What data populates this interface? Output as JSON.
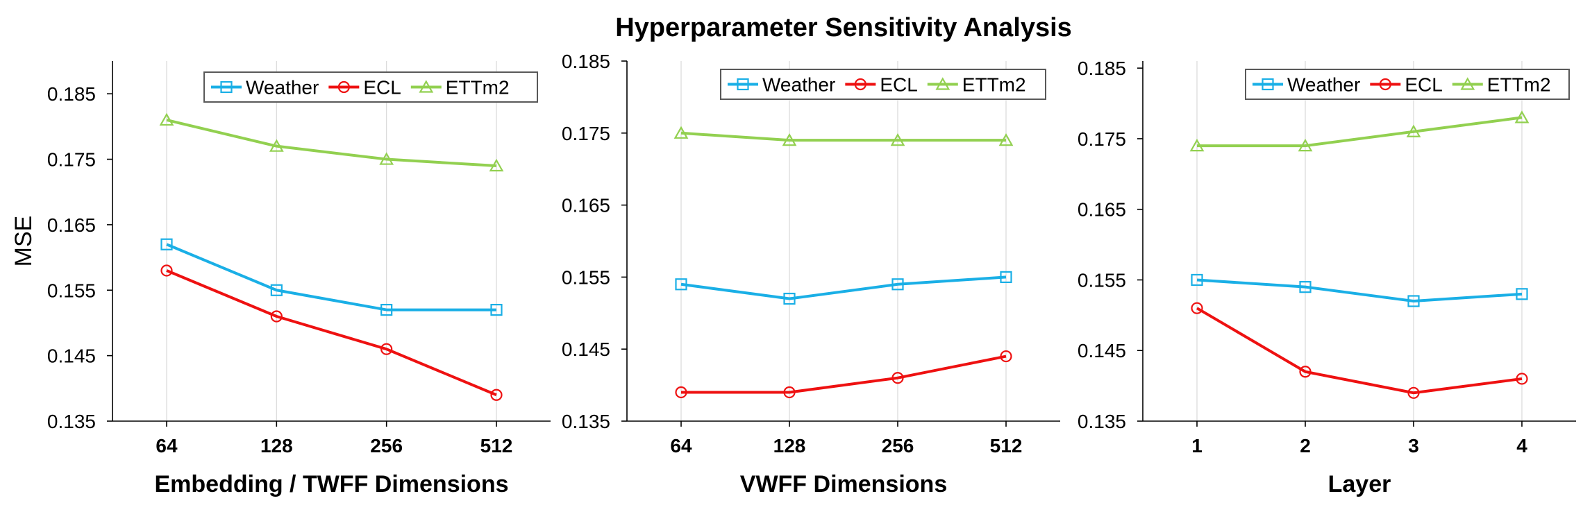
{
  "figure": {
    "title": "Hyperparameter Sensitivity Analysis"
  },
  "colors": {
    "Weather": "#1aafe6",
    "ECL": "#ee1111",
    "ETTm2": "#92d050",
    "grid": "#d9d9d9",
    "axis": "#000000"
  },
  "chart_data": [
    {
      "type": "line",
      "title": "",
      "xlabel": "Embedding / TWFF Dimensions",
      "ylabel": "MSE",
      "categories": [
        "64",
        "128",
        "256",
        "512"
      ],
      "yticks": [
        "0.135",
        "0.145",
        "0.155",
        "0.165",
        "0.175",
        "0.185"
      ],
      "ylim": [
        0.135,
        0.19
      ],
      "grid": "vertical",
      "legend": "top-right",
      "series": [
        {
          "name": "Weather",
          "marker": "square",
          "values": [
            0.162,
            0.155,
            0.152,
            0.152
          ]
        },
        {
          "name": "ECL",
          "marker": "circle",
          "values": [
            0.158,
            0.151,
            0.146,
            0.139
          ]
        },
        {
          "name": "ETTm2",
          "marker": "triangle",
          "values": [
            0.181,
            0.177,
            0.175,
            0.174
          ]
        }
      ]
    },
    {
      "type": "line",
      "title": "",
      "xlabel": "VWFF Dimensions",
      "ylabel": "",
      "categories": [
        "64",
        "128",
        "256",
        "512"
      ],
      "yticks": [
        "0.135",
        "0.145",
        "0.155",
        "0.165",
        "0.175",
        "0.185"
      ],
      "ylim": [
        0.135,
        0.185
      ],
      "grid": "vertical",
      "legend": "top-right",
      "series": [
        {
          "name": "Weather",
          "marker": "square",
          "values": [
            0.154,
            0.152,
            0.154,
            0.155
          ]
        },
        {
          "name": "ECL",
          "marker": "circle",
          "values": [
            0.139,
            0.139,
            0.141,
            0.144
          ]
        },
        {
          "name": "ETTm2",
          "marker": "triangle",
          "values": [
            0.175,
            0.174,
            0.174,
            0.174
          ]
        }
      ]
    },
    {
      "type": "line",
      "title": "",
      "xlabel": "Layer",
      "ylabel": "",
      "categories": [
        "1",
        "2",
        "3",
        "4"
      ],
      "yticks": [
        "0.135",
        "0.145",
        "0.155",
        "0.165",
        "0.175",
        "0.185"
      ],
      "ylim": [
        0.135,
        0.186
      ],
      "grid": "vertical",
      "legend": "top-right",
      "series": [
        {
          "name": "Weather",
          "marker": "square",
          "values": [
            0.155,
            0.154,
            0.152,
            0.153
          ]
        },
        {
          "name": "ECL",
          "marker": "circle",
          "values": [
            0.151,
            0.142,
            0.139,
            0.141
          ]
        },
        {
          "name": "ETTm2",
          "marker": "triangle",
          "values": [
            0.174,
            0.174,
            0.176,
            0.178
          ]
        }
      ]
    }
  ]
}
